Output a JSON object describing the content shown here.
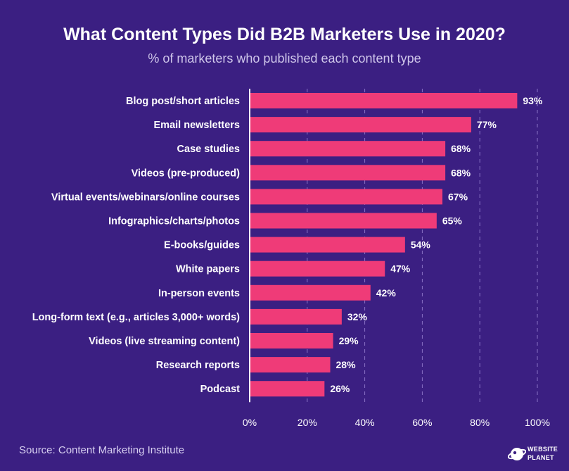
{
  "header": {
    "title": "What Content Types Did B2B Marketers Use in 2020?",
    "subtitle": "% of marketers who published each content type"
  },
  "footer": {
    "source": "Source: Content Marketing Institute",
    "brand_line1": "WEBSITE",
    "brand_line2": "PLANET"
  },
  "colors": {
    "background": "#3b1f82",
    "bar": "#ef3b78",
    "grid": "#8a73c6",
    "text": "#ffffff"
  },
  "chart_data": {
    "type": "bar",
    "orientation": "horizontal",
    "title": "What Content Types Did B2B Marketers Use in 2020?",
    "subtitle": "% of marketers who published each content type",
    "categories": [
      "Blog post/short articles",
      "Email newsletters",
      "Case studies",
      "Videos (pre-produced)",
      "Virtual events/webinars/online courses",
      "Infographics/charts/photos",
      "E-books/guides",
      "White papers",
      "In-person events",
      "Long-form text (e.g., articles 3,000+ words)",
      "Videos (live streaming content)",
      "Research reports",
      "Podcast"
    ],
    "values": [
      93,
      77,
      68,
      68,
      67,
      65,
      54,
      47,
      42,
      32,
      29,
      28,
      26
    ],
    "data_labels": [
      "93%",
      "77%",
      "68%",
      "68%",
      "67%",
      "65%",
      "54%",
      "47%",
      "42%",
      "32%",
      "29%",
      "28%",
      "26%"
    ],
    "xlim": [
      0,
      100
    ],
    "xticks": [
      0,
      20,
      40,
      60,
      80,
      100
    ],
    "xtick_labels": [
      "0%",
      "20%",
      "40%",
      "60%",
      "80%",
      "100%"
    ],
    "grid": "vertical dashed",
    "legend": "none",
    "source": "Source: Content Marketing Institute"
  }
}
